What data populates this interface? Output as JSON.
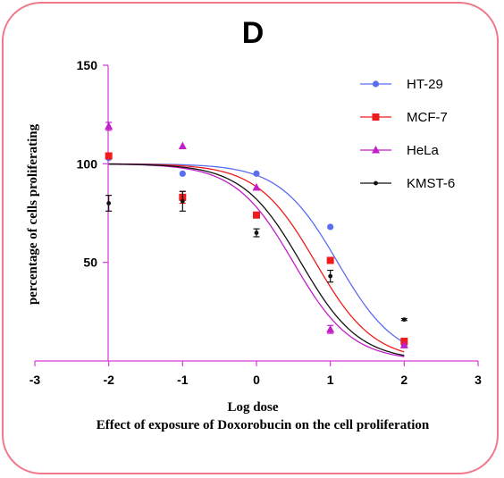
{
  "panel_label": "D",
  "caption": "Effect of exposure of  Doxorobucin on the cell proliferation",
  "chart_data": {
    "type": "scatter",
    "xlabel": "Log dose",
    "ylabel": "percentage of cells proliferating",
    "xlim": [
      -3,
      3
    ],
    "ylim": [
      0,
      150
    ],
    "x_ticks": [
      -3,
      -2,
      -1,
      0,
      1,
      2,
      3
    ],
    "x_tick_labels": [
      "-3",
      "-2",
      "-1",
      "0",
      "1",
      "2",
      "3"
    ],
    "y_ticks": [
      50,
      100,
      150
    ],
    "y_tick_labels": [
      "50",
      "100",
      "150"
    ],
    "legend_position": "top-right",
    "series": [
      {
        "name": "HT-29",
        "color": "#5a6ef0",
        "marker": "circle",
        "points": [
          [
            -2,
            103
          ],
          [
            -1,
            95
          ],
          [
            0,
            95
          ],
          [
            1,
            68
          ],
          [
            2,
            8
          ]
        ],
        "errors": [
          0,
          0,
          0,
          0,
          0
        ],
        "curve": {
          "top": 100,
          "bottom": 0,
          "logec50": 1.1,
          "hill": 1.1
        }
      },
      {
        "name": "MCF-7",
        "color": "#ee1c1c",
        "marker": "square",
        "points": [
          [
            -2,
            104
          ],
          [
            -1,
            83
          ],
          [
            0,
            74
          ],
          [
            1,
            51
          ],
          [
            2,
            10
          ]
        ],
        "errors": [
          0,
          3,
          0,
          0,
          0
        ],
        "curve": {
          "top": 100,
          "bottom": 0,
          "logec50": 0.8,
          "hill": 1.1
        }
      },
      {
        "name": "HeLa",
        "color": "#c21fc8",
        "marker": "triangle",
        "points": [
          [
            -2,
            119
          ],
          [
            -1,
            109
          ],
          [
            0,
            88
          ],
          [
            1,
            16
          ],
          [
            2,
            8
          ]
        ],
        "errors": [
          2,
          0,
          0,
          2,
          0
        ],
        "curve": {
          "top": 100,
          "bottom": 0,
          "logec50": 0.5,
          "hill": 1.1
        }
      },
      {
        "name": "KMST-6",
        "color": "#111111",
        "marker": "dot",
        "points": [
          [
            -2,
            80
          ],
          [
            -1,
            81
          ],
          [
            0,
            65
          ],
          [
            1,
            43
          ],
          [
            2,
            21
          ]
        ],
        "errors": [
          4,
          5,
          2,
          3,
          0.5
        ],
        "curve": {
          "top": 100,
          "bottom": 0,
          "logec50": 0.6,
          "hill": 1.1
        }
      }
    ]
  }
}
